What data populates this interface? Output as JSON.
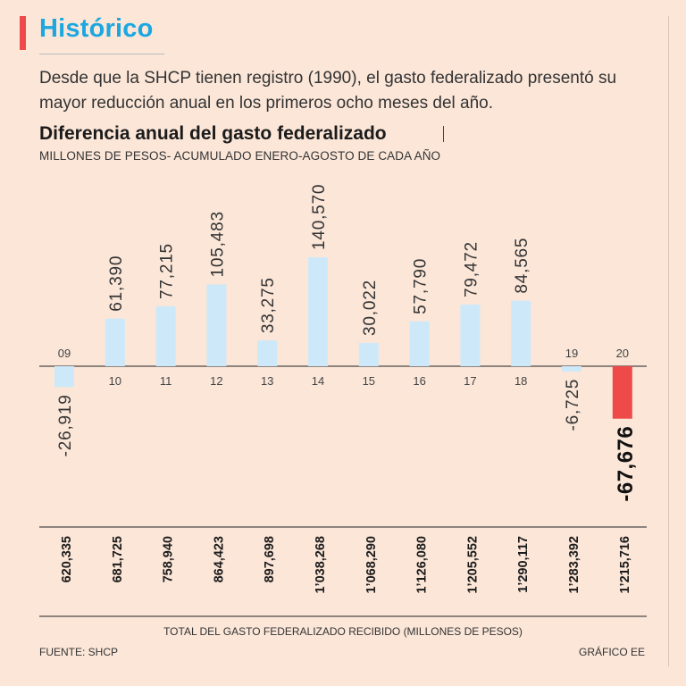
{
  "header": {
    "section_title": "Histórico",
    "intro": "Desde que la SHCP tienen registro (1990), el gasto federalizado presentó su mayor reducción anual en los primeros ocho meses del año."
  },
  "footer": {
    "source": "FUENTE: SHCP",
    "credit": "GRÁFICO EE"
  },
  "colors": {
    "background": "#FBE6D8",
    "accent": "#EF4A4A",
    "title_blue": "#1CA7E0",
    "bar_positive": "#CDE9F9",
    "bar_highlight": "#EF4A4A"
  },
  "chart_data": {
    "type": "bar",
    "title": "Diferencia anual del gasto federalizado",
    "subtitle": "MILLONES DE PESOS- ACUMULADO ENERO-AGOSTO DE CADA AÑO",
    "xlabel": "",
    "ylabel": "",
    "ylim": [
      -67676,
      140570
    ],
    "categories": [
      "09",
      "10",
      "11",
      "12",
      "13",
      "14",
      "15",
      "16",
      "17",
      "18",
      "19",
      "20"
    ],
    "values": [
      -26919,
      61390,
      77215,
      105483,
      33275,
      140570,
      30022,
      57790,
      79472,
      84565,
      -6725,
      -67676
    ],
    "value_labels": [
      "-26,919",
      "61,390",
      "77,215",
      "105,483",
      "33,275",
      "140,570",
      "30,022",
      "57,790",
      "79,472",
      "84,565",
      "-6,725",
      "-67,676"
    ],
    "highlight_index": 11,
    "totals": {
      "label": "TOTAL DEL GASTO FEDERALIZADO RECIBIDO (MILLONES DE PESOS)",
      "values": [
        620335,
        681725,
        758940,
        864423,
        897698,
        1038268,
        1068290,
        1126080,
        1205552,
        1290117,
        1283392,
        1215716
      ],
      "value_labels": [
        "620,335",
        "681,725",
        "758,940",
        "864,423",
        "897,698",
        "1’038,268",
        "1’068,290",
        "1’126,080",
        "1’205,552",
        "1’290,117",
        "1’283,392",
        "1’215,716"
      ]
    }
  }
}
